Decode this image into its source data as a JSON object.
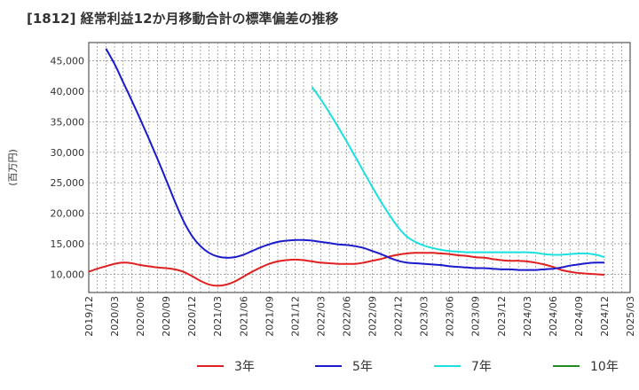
{
  "chart_data": {
    "type": "line",
    "title": "[1812]  経常利益12か月移動合計の標準偏差の推移",
    "ylabel": "(百万円)",
    "xlabel": "",
    "grid": true,
    "legend_position": "bottom",
    "ylim": [
      7000,
      48000
    ],
    "y_ticks": [
      10000,
      15000,
      20000,
      25000,
      30000,
      35000,
      40000,
      45000
    ],
    "y_tick_labels": [
      "10,000",
      "15,000",
      "20,000",
      "25,000",
      "30,000",
      "35,000",
      "40,000",
      "45,000"
    ],
    "x_ticks": [
      "2019/12",
      "2020/03",
      "2020/06",
      "2020/09",
      "2020/12",
      "2021/03",
      "2021/06",
      "2021/09",
      "2021/12",
      "2022/03",
      "2022/06",
      "2022/09",
      "2022/12",
      "2023/03",
      "2023/06",
      "2023/09",
      "2023/12",
      "2024/03",
      "2024/06",
      "2024/09",
      "2024/12",
      "2025/03"
    ],
    "series": [
      {
        "name": "3年",
        "color": "#e02020",
        "points": [
          [
            "2019/12",
            10400
          ],
          [
            "2020/01",
            10900
          ],
          [
            "2020/02",
            11300
          ],
          [
            "2020/03",
            11700
          ],
          [
            "2020/04",
            11900
          ],
          [
            "2020/05",
            11800
          ],
          [
            "2020/06",
            11500
          ],
          [
            "2020/07",
            11300
          ],
          [
            "2020/08",
            11100
          ],
          [
            "2020/09",
            11000
          ],
          [
            "2020/10",
            10800
          ],
          [
            "2020/11",
            10400
          ],
          [
            "2020/12",
            9700
          ],
          [
            "2021/01",
            8900
          ],
          [
            "2021/02",
            8300
          ],
          [
            "2021/03",
            8100
          ],
          [
            "2021/04",
            8300
          ],
          [
            "2021/05",
            8800
          ],
          [
            "2021/06",
            9600
          ],
          [
            "2021/07",
            10400
          ],
          [
            "2021/08",
            11100
          ],
          [
            "2021/09",
            11700
          ],
          [
            "2021/10",
            12100
          ],
          [
            "2021/11",
            12300
          ],
          [
            "2021/12",
            12400
          ],
          [
            "2022/01",
            12300
          ],
          [
            "2022/02",
            12100
          ],
          [
            "2022/03",
            11900
          ],
          [
            "2022/04",
            11800
          ],
          [
            "2022/05",
            11700
          ],
          [
            "2022/06",
            11700
          ],
          [
            "2022/07",
            11700
          ],
          [
            "2022/08",
            11900
          ],
          [
            "2022/09",
            12200
          ],
          [
            "2022/10",
            12500
          ],
          [
            "2022/11",
            12900
          ],
          [
            "2022/12",
            13200
          ],
          [
            "2023/01",
            13400
          ],
          [
            "2023/02",
            13500
          ],
          [
            "2023/03",
            13500
          ],
          [
            "2023/04",
            13500
          ],
          [
            "2023/05",
            13400
          ],
          [
            "2023/06",
            13300
          ],
          [
            "2023/07",
            13100
          ],
          [
            "2023/08",
            13000
          ],
          [
            "2023/09",
            12800
          ],
          [
            "2023/10",
            12700
          ],
          [
            "2023/11",
            12500
          ],
          [
            "2023/12",
            12300
          ],
          [
            "2024/01",
            12200
          ],
          [
            "2024/02",
            12200
          ],
          [
            "2024/03",
            12100
          ],
          [
            "2024/04",
            11900
          ],
          [
            "2024/05",
            11600
          ],
          [
            "2024/06",
            11200
          ],
          [
            "2024/07",
            10700
          ],
          [
            "2024/08",
            10400
          ],
          [
            "2024/09",
            10200
          ],
          [
            "2024/10",
            10100
          ],
          [
            "2024/11",
            10000
          ],
          [
            "2024/12",
            9900
          ]
        ]
      },
      {
        "name": "5年",
        "color": "#1a1acc",
        "points": [
          [
            "2020/02",
            47000
          ],
          [
            "2020/03",
            44500
          ],
          [
            "2020/04",
            41500
          ],
          [
            "2020/05",
            38500
          ],
          [
            "2020/06",
            35400
          ],
          [
            "2020/07",
            32200
          ],
          [
            "2020/08",
            28900
          ],
          [
            "2020/09",
            25500
          ],
          [
            "2020/10",
            22000
          ],
          [
            "2020/11",
            18800
          ],
          [
            "2020/12",
            16300
          ],
          [
            "2021/01",
            14600
          ],
          [
            "2021/02",
            13500
          ],
          [
            "2021/03",
            12900
          ],
          [
            "2021/04",
            12700
          ],
          [
            "2021/05",
            12800
          ],
          [
            "2021/06",
            13200
          ],
          [
            "2021/07",
            13800
          ],
          [
            "2021/08",
            14400
          ],
          [
            "2021/09",
            14900
          ],
          [
            "2021/10",
            15300
          ],
          [
            "2021/11",
            15500
          ],
          [
            "2021/12",
            15600
          ],
          [
            "2022/01",
            15600
          ],
          [
            "2022/02",
            15500
          ],
          [
            "2022/03",
            15300
          ],
          [
            "2022/04",
            15100
          ],
          [
            "2022/05",
            14900
          ],
          [
            "2022/06",
            14800
          ],
          [
            "2022/07",
            14600
          ],
          [
            "2022/08",
            14300
          ],
          [
            "2022/09",
            13800
          ],
          [
            "2022/10",
            13300
          ],
          [
            "2022/11",
            12700
          ],
          [
            "2022/12",
            12200
          ],
          [
            "2023/01",
            11900
          ],
          [
            "2023/02",
            11800
          ],
          [
            "2023/03",
            11700
          ],
          [
            "2023/04",
            11600
          ],
          [
            "2023/05",
            11500
          ],
          [
            "2023/06",
            11300
          ],
          [
            "2023/07",
            11200
          ],
          [
            "2023/08",
            11100
          ],
          [
            "2023/09",
            11000
          ],
          [
            "2023/10",
            11000
          ],
          [
            "2023/11",
            10900
          ],
          [
            "2023/12",
            10800
          ],
          [
            "2024/01",
            10800
          ],
          [
            "2024/02",
            10700
          ],
          [
            "2024/03",
            10700
          ],
          [
            "2024/04",
            10700
          ],
          [
            "2024/05",
            10800
          ],
          [
            "2024/06",
            10900
          ],
          [
            "2024/07",
            11100
          ],
          [
            "2024/08",
            11400
          ],
          [
            "2024/09",
            11600
          ],
          [
            "2024/10",
            11800
          ],
          [
            "2024/11",
            11900
          ],
          [
            "2024/12",
            11900
          ]
        ]
      },
      {
        "name": "7年",
        "color": "#1ae0e0",
        "points": [
          [
            "2022/02",
            40700
          ],
          [
            "2022/03",
            38700
          ],
          [
            "2022/04",
            36500
          ],
          [
            "2022/05",
            34200
          ],
          [
            "2022/06",
            31800
          ],
          [
            "2022/07",
            29300
          ],
          [
            "2022/08",
            26800
          ],
          [
            "2022/09",
            24300
          ],
          [
            "2022/10",
            21900
          ],
          [
            "2022/11",
            19700
          ],
          [
            "2022/12",
            17700
          ],
          [
            "2023/01",
            16200
          ],
          [
            "2023/02",
            15300
          ],
          [
            "2023/03",
            14700
          ],
          [
            "2023/04",
            14300
          ],
          [
            "2023/05",
            14000
          ],
          [
            "2023/06",
            13800
          ],
          [
            "2023/07",
            13700
          ],
          [
            "2023/08",
            13600
          ],
          [
            "2023/09",
            13600
          ],
          [
            "2023/10",
            13600
          ],
          [
            "2023/11",
            13600
          ],
          [
            "2023/12",
            13600
          ],
          [
            "2024/01",
            13600
          ],
          [
            "2024/02",
            13600
          ],
          [
            "2024/03",
            13600
          ],
          [
            "2024/04",
            13500
          ],
          [
            "2024/05",
            13300
          ],
          [
            "2024/06",
            13200
          ],
          [
            "2024/07",
            13200
          ],
          [
            "2024/08",
            13300
          ],
          [
            "2024/09",
            13400
          ],
          [
            "2024/10",
            13400
          ],
          [
            "2024/11",
            13200
          ],
          [
            "2024/12",
            12800
          ]
        ]
      },
      {
        "name": "10年",
        "color": "#228b22",
        "points": []
      }
    ]
  }
}
